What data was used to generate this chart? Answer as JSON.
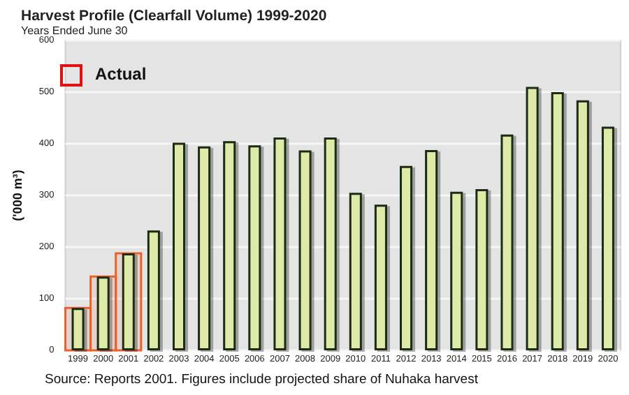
{
  "chart_data": {
    "type": "bar",
    "title": "Harvest Profile (Clearfall Volume) 1999-2020",
    "subtitle": "Years Ended June 30",
    "ylabel": "('000 m³)",
    "categories": [
      "1999",
      "2000",
      "2001",
      "2002",
      "2003",
      "2004",
      "2005",
      "2006",
      "2007",
      "2008",
      "2009",
      "2010",
      "2011",
      "2012",
      "2013",
      "2014",
      "2015",
      "2016",
      "2017",
      "2018",
      "2019",
      "2020"
    ],
    "values": [
      82,
      143,
      188,
      232,
      402,
      395,
      405,
      397,
      412,
      387,
      412,
      305,
      282,
      357,
      388,
      307,
      312,
      418,
      510,
      500,
      484,
      433
    ],
    "color": "#dfeaa8",
    "ylim": [
      0,
      600
    ],
    "yticks": [
      0,
      100,
      200,
      300,
      400,
      500,
      600
    ],
    "grid": "y",
    "bands": [
      {
        "axis": "x",
        "from": "1999",
        "to": "1999",
        "color": "#e8622c"
      },
      {
        "axis": "x",
        "from": "2000",
        "to": "2000",
        "color": "#e8622c"
      },
      {
        "axis": "x",
        "from": "2001",
        "to": "2001",
        "color": "#e8622c"
      }
    ],
    "annotations": [
      "Actual",
      "Source: Reports 2001. Figures include projected share of Nuhaka harvest"
    ]
  }
}
